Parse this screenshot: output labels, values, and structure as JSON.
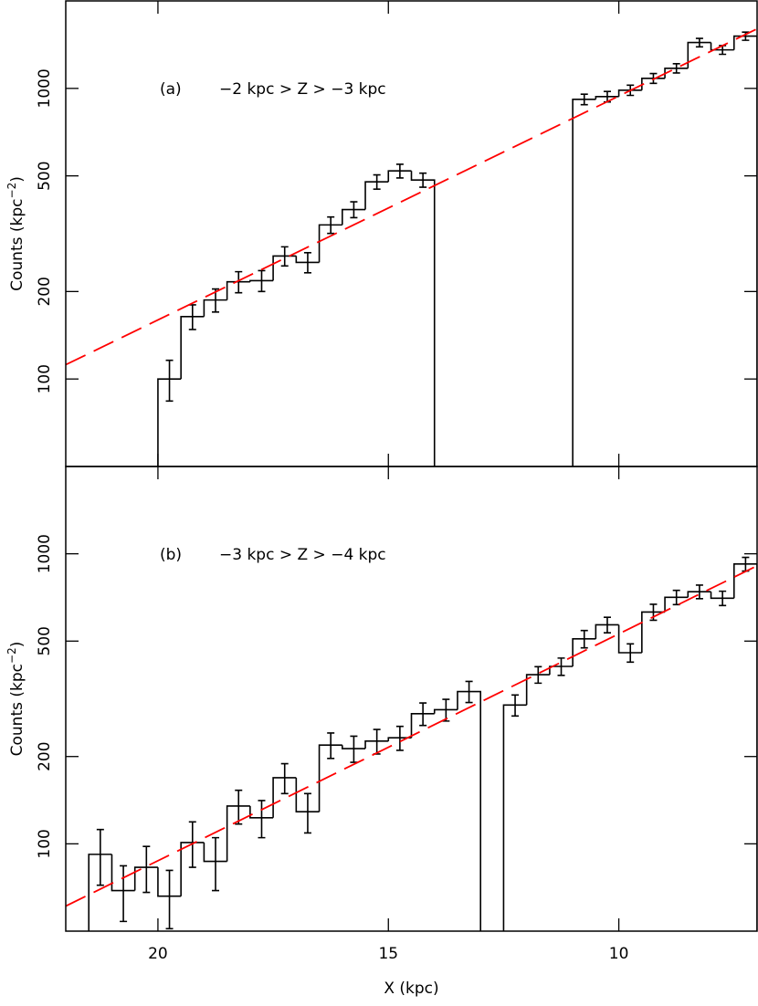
{
  "chart_data": [
    {
      "type": "histogram",
      "panel_label": "(a)",
      "annotation": "−2 kpc > Z > −3 kpc",
      "ylabel": [
        "Counts (kpc",
        "−2",
        ")"
      ],
      "bins": [
        20,
        19.5,
        19,
        18.5,
        18,
        17.5,
        17,
        16.5,
        16,
        15.5,
        15,
        14.5,
        14,
        13.5,
        13,
        12.5,
        12,
        11.5,
        11,
        10.5,
        10,
        9.5,
        9,
        8.5,
        8,
        7.5,
        7
      ],
      "counts": [
        100,
        164,
        187,
        216,
        218,
        265,
        252,
        339,
        383,
        477,
        520,
        484,
        null,
        null,
        null,
        null,
        null,
        null,
        917,
        937,
        986,
        1083,
        1173,
        1438,
        1357,
        1513
      ],
      "errors": [
        16,
        16,
        17,
        18,
        18,
        20,
        20,
        22,
        24,
        27,
        28,
        27,
        null,
        null,
        null,
        null,
        null,
        null,
        38,
        39,
        40,
        42,
        43,
        48,
        47,
        49
      ],
      "color": "#000000",
      "fit": {
        "x": [
          22,
          7
        ],
        "values": [
          112,
          1603
        ],
        "color": "#ff0000"
      },
      "xlim": [
        22,
        7
      ],
      "xticks": [
        20,
        15,
        10
      ],
      "xtick_labels": false,
      "ylim": [
        50,
        2000
      ],
      "yticks": [
        100,
        200,
        500,
        1000
      ],
      "log_y": true
    },
    {
      "type": "histogram",
      "panel_label": "(b)",
      "annotation": "−3 kpc > Z > −4 kpc",
      "ylabel": [
        "Counts (kpc",
        "−2",
        ")"
      ],
      "xlabel": "X (kpc)",
      "bins": [
        21.5,
        21,
        20.5,
        20,
        19.5,
        19,
        18.5,
        18,
        17.5,
        17,
        16.5,
        16,
        15.5,
        15,
        14.5,
        14,
        13.5,
        13,
        12.5,
        12,
        11.5,
        11,
        10.5,
        10,
        9.5,
        9,
        8.5,
        8,
        7.5,
        7
      ],
      "counts": [
        92,
        69,
        83,
        66,
        101,
        87,
        135,
        123,
        169,
        129,
        219,
        213,
        226,
        232,
        281,
        290,
        335,
        null,
        301,
        383,
        409,
        509,
        569,
        456,
        630,
        708,
        740,
        703,
        922
      ],
      "errors": [
        20,
        15,
        15,
        15,
        18,
        18,
        18,
        18,
        20,
        20,
        22,
        22,
        22,
        22,
        25,
        25,
        28,
        null,
        25,
        25,
        28,
        35,
        35,
        33,
        40,
        40,
        40,
        40,
        50
      ],
      "color": "#000000",
      "fit": {
        "x": [
          22,
          7
        ],
        "values": [
          61,
          909
        ],
        "color": "#ff0000"
      },
      "xlim": [
        22,
        7
      ],
      "xticks": [
        20,
        15,
        10
      ],
      "xtick_labels": true,
      "ylim": [
        50,
        2000
      ],
      "yticks": [
        100,
        200,
        500,
        1000
      ],
      "log_y": true
    }
  ]
}
